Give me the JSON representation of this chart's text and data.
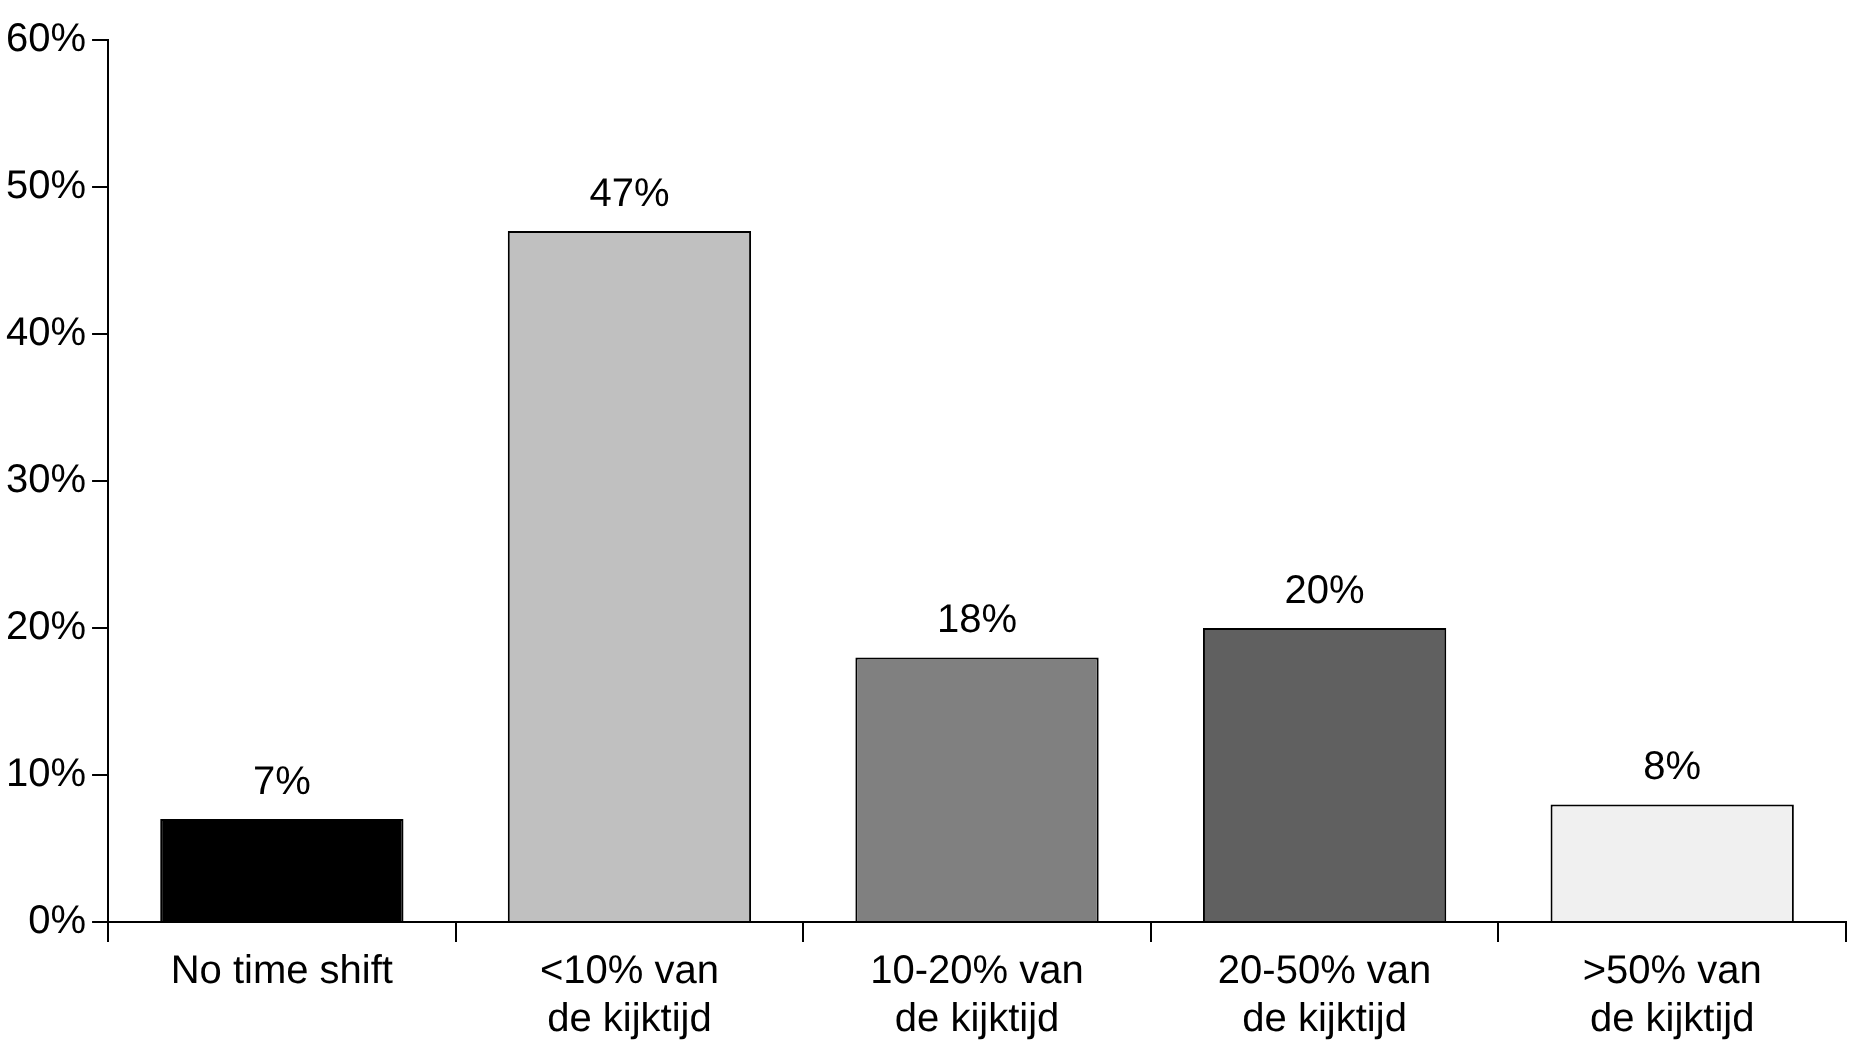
{
  "chart_data": {
    "type": "bar",
    "categories": [
      "No time shift",
      "<10% van\nde kijktijd",
      "10-20% van\nde kijktijd",
      "20-50% van\nde kijktijd",
      ">50% van\nde kijktijd"
    ],
    "values": [
      7,
      47,
      18,
      20,
      8
    ],
    "colors": [
      "#000000",
      "#c0c0c0",
      "#808080",
      "#606060",
      "#f0f0f0"
    ],
    "value_labels": [
      "7%",
      "47%",
      "18%",
      "20%",
      "8%"
    ],
    "ylim": [
      0,
      60
    ],
    "yticks": [
      {
        "value": 0,
        "label": "0%"
      },
      {
        "value": 10,
        "label": "10%"
      },
      {
        "value": 20,
        "label": "20%"
      },
      {
        "value": 30,
        "label": "30%"
      },
      {
        "value": 40,
        "label": "40%"
      },
      {
        "value": 50,
        "label": "50%"
      },
      {
        "value": 60,
        "label": "60%"
      }
    ],
    "grid": false,
    "legend": false
  }
}
